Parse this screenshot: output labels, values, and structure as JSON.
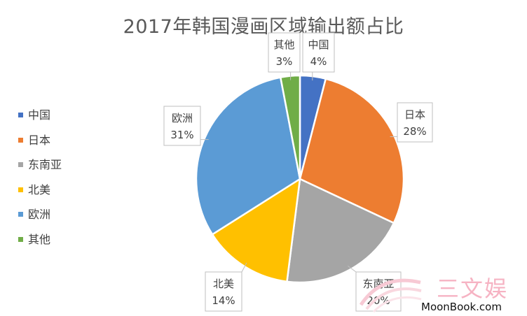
{
  "chart_data": {
    "type": "pie",
    "title": "2017年韩国漫画区域输出额占比",
    "categories": [
      "中国",
      "日本",
      "东南亚",
      "北美",
      "欧洲",
      "其他"
    ],
    "values": [
      4,
      28,
      20,
      14,
      31,
      3
    ],
    "labels": [
      "4%",
      "28%",
      "20%",
      "14%",
      "31%",
      "3%"
    ],
    "colors": [
      "#4472c4",
      "#ed7d31",
      "#a5a5a5",
      "#ffc000",
      "#5b9bd5",
      "#70ad47"
    ],
    "legend_position": "left",
    "data_labels": "callouts with category name and percentage"
  },
  "watermark": {
    "brand": "三文娱",
    "url": "MoonBook.com"
  }
}
